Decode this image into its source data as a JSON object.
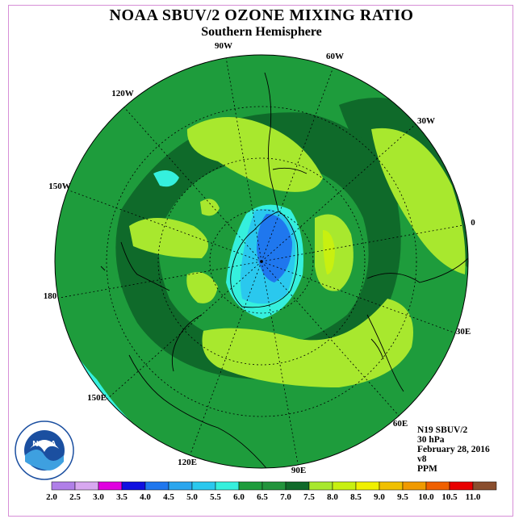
{
  "header": {
    "title": "NOAA SBUV/2 OZONE MIXING RATIO",
    "subtitle": "Southern Hemisphere"
  },
  "map": {
    "longitude_labels": [
      "90W",
      "60W",
      "30W",
      "0",
      "30E",
      "60E",
      "90E",
      "120E",
      "150E",
      "180",
      "150W",
      "120W"
    ]
  },
  "info": {
    "instrument": "N19 SBUV/2",
    "level": "30 hPa",
    "date": "February 28, 2016",
    "version": "v8",
    "units": "PPM"
  },
  "logo": {
    "text": "NOAA"
  },
  "colorbar": {
    "labels": [
      "2.0",
      "2.5",
      "3.0",
      "3.5",
      "4.0",
      "4.5",
      "5.0",
      "5.5",
      "6.0",
      "6.5",
      "7.0",
      "7.5",
      "8.0",
      "8.5",
      "9.0",
      "9.5",
      "10.0",
      "10.5",
      "11.0"
    ],
    "colors": [
      "#b07fe8",
      "#d8a8f0",
      "#e000e0",
      "#1010e0",
      "#1f77ee",
      "#2aa6ee",
      "#2ac8ee",
      "#35f0dd",
      "#1e9c3c",
      "#22943c",
      "#0f6a2a",
      "#a8e82e",
      "#c8f010",
      "#f0f000",
      "#f0c000",
      "#f09a00",
      "#f06000",
      "#e80000",
      "#8a4e2e"
    ]
  }
}
